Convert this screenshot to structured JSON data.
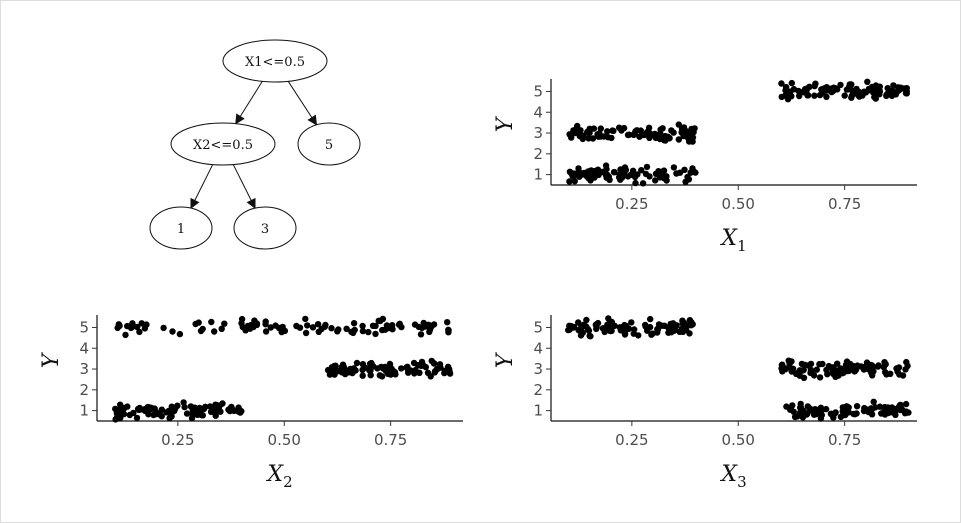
{
  "tree": {
    "nodes": [
      {
        "id": "root",
        "label": "X1<=0.5"
      },
      {
        "id": "split2",
        "label": "X2<=0.5"
      },
      {
        "id": "leaf5",
        "label": "5"
      },
      {
        "id": "leaf1",
        "label": "1"
      },
      {
        "id": "leaf3",
        "label": "3"
      }
    ],
    "edges": [
      [
        "root",
        "split2"
      ],
      [
        "root",
        "leaf5"
      ],
      [
        "split2",
        "leaf1"
      ],
      [
        "split2",
        "leaf3"
      ]
    ]
  },
  "chart_data": [
    {
      "type": "scatter",
      "id": "x1",
      "xlabel": "X",
      "xlabel_sub": "1",
      "ylabel": "Y",
      "xticks": [
        0.25,
        0.5,
        0.75
      ],
      "xtick_labels": [
        "0.25",
        "0.50",
        "0.75"
      ],
      "yticks": [
        1,
        2,
        3,
        4,
        5
      ],
      "xlim": [
        0.06,
        0.92
      ],
      "ylim": [
        0.5,
        5.6
      ],
      "grid": false,
      "clusters": [
        {
          "x_range": [
            0.1,
            0.4
          ],
          "y_center": 1,
          "y_jitter": 0.25,
          "n": 90
        },
        {
          "x_range": [
            0.1,
            0.4
          ],
          "y_center": 3,
          "y_jitter": 0.25,
          "n": 90
        },
        {
          "x_range": [
            0.6,
            0.9
          ],
          "y_center": 5,
          "y_jitter": 0.25,
          "n": 100
        }
      ]
    },
    {
      "type": "scatter",
      "id": "x2",
      "xlabel": "X",
      "xlabel_sub": "2",
      "ylabel": "Y",
      "xticks": [
        0.25,
        0.5,
        0.75
      ],
      "xtick_labels": [
        "0.25",
        "0.50",
        "0.75"
      ],
      "yticks": [
        1,
        2,
        3,
        4,
        5
      ],
      "xlim": [
        0.06,
        0.92
      ],
      "ylim": [
        0.5,
        5.6
      ],
      "grid": false,
      "clusters": [
        {
          "x_range": [
            0.1,
            0.4
          ],
          "y_center": 1,
          "y_jitter": 0.25,
          "n": 90
        },
        {
          "x_range": [
            0.6,
            0.9
          ],
          "y_center": 3,
          "y_jitter": 0.25,
          "n": 90
        },
        {
          "x_range": [
            0.1,
            0.9
          ],
          "y_center": 5,
          "y_jitter": 0.25,
          "n": 100
        }
      ]
    },
    {
      "type": "scatter",
      "id": "x3",
      "xlabel": "X",
      "xlabel_sub": "3",
      "ylabel": "Y",
      "xticks": [
        0.25,
        0.5,
        0.75
      ],
      "xtick_labels": [
        "0.25",
        "0.50",
        "0.75"
      ],
      "yticks": [
        1,
        2,
        3,
        4,
        5
      ],
      "xlim": [
        0.06,
        0.92
      ],
      "ylim": [
        0.5,
        5.6
      ],
      "grid": false,
      "clusters": [
        {
          "x_range": [
            0.1,
            0.4
          ],
          "y_center": 5,
          "y_jitter": 0.25,
          "n": 100
        },
        {
          "x_range": [
            0.6,
            0.9
          ],
          "y_center": 1,
          "y_jitter": 0.25,
          "n": 90
        },
        {
          "x_range": [
            0.6,
            0.9
          ],
          "y_center": 3,
          "y_jitter": 0.25,
          "n": 90
        }
      ]
    }
  ]
}
